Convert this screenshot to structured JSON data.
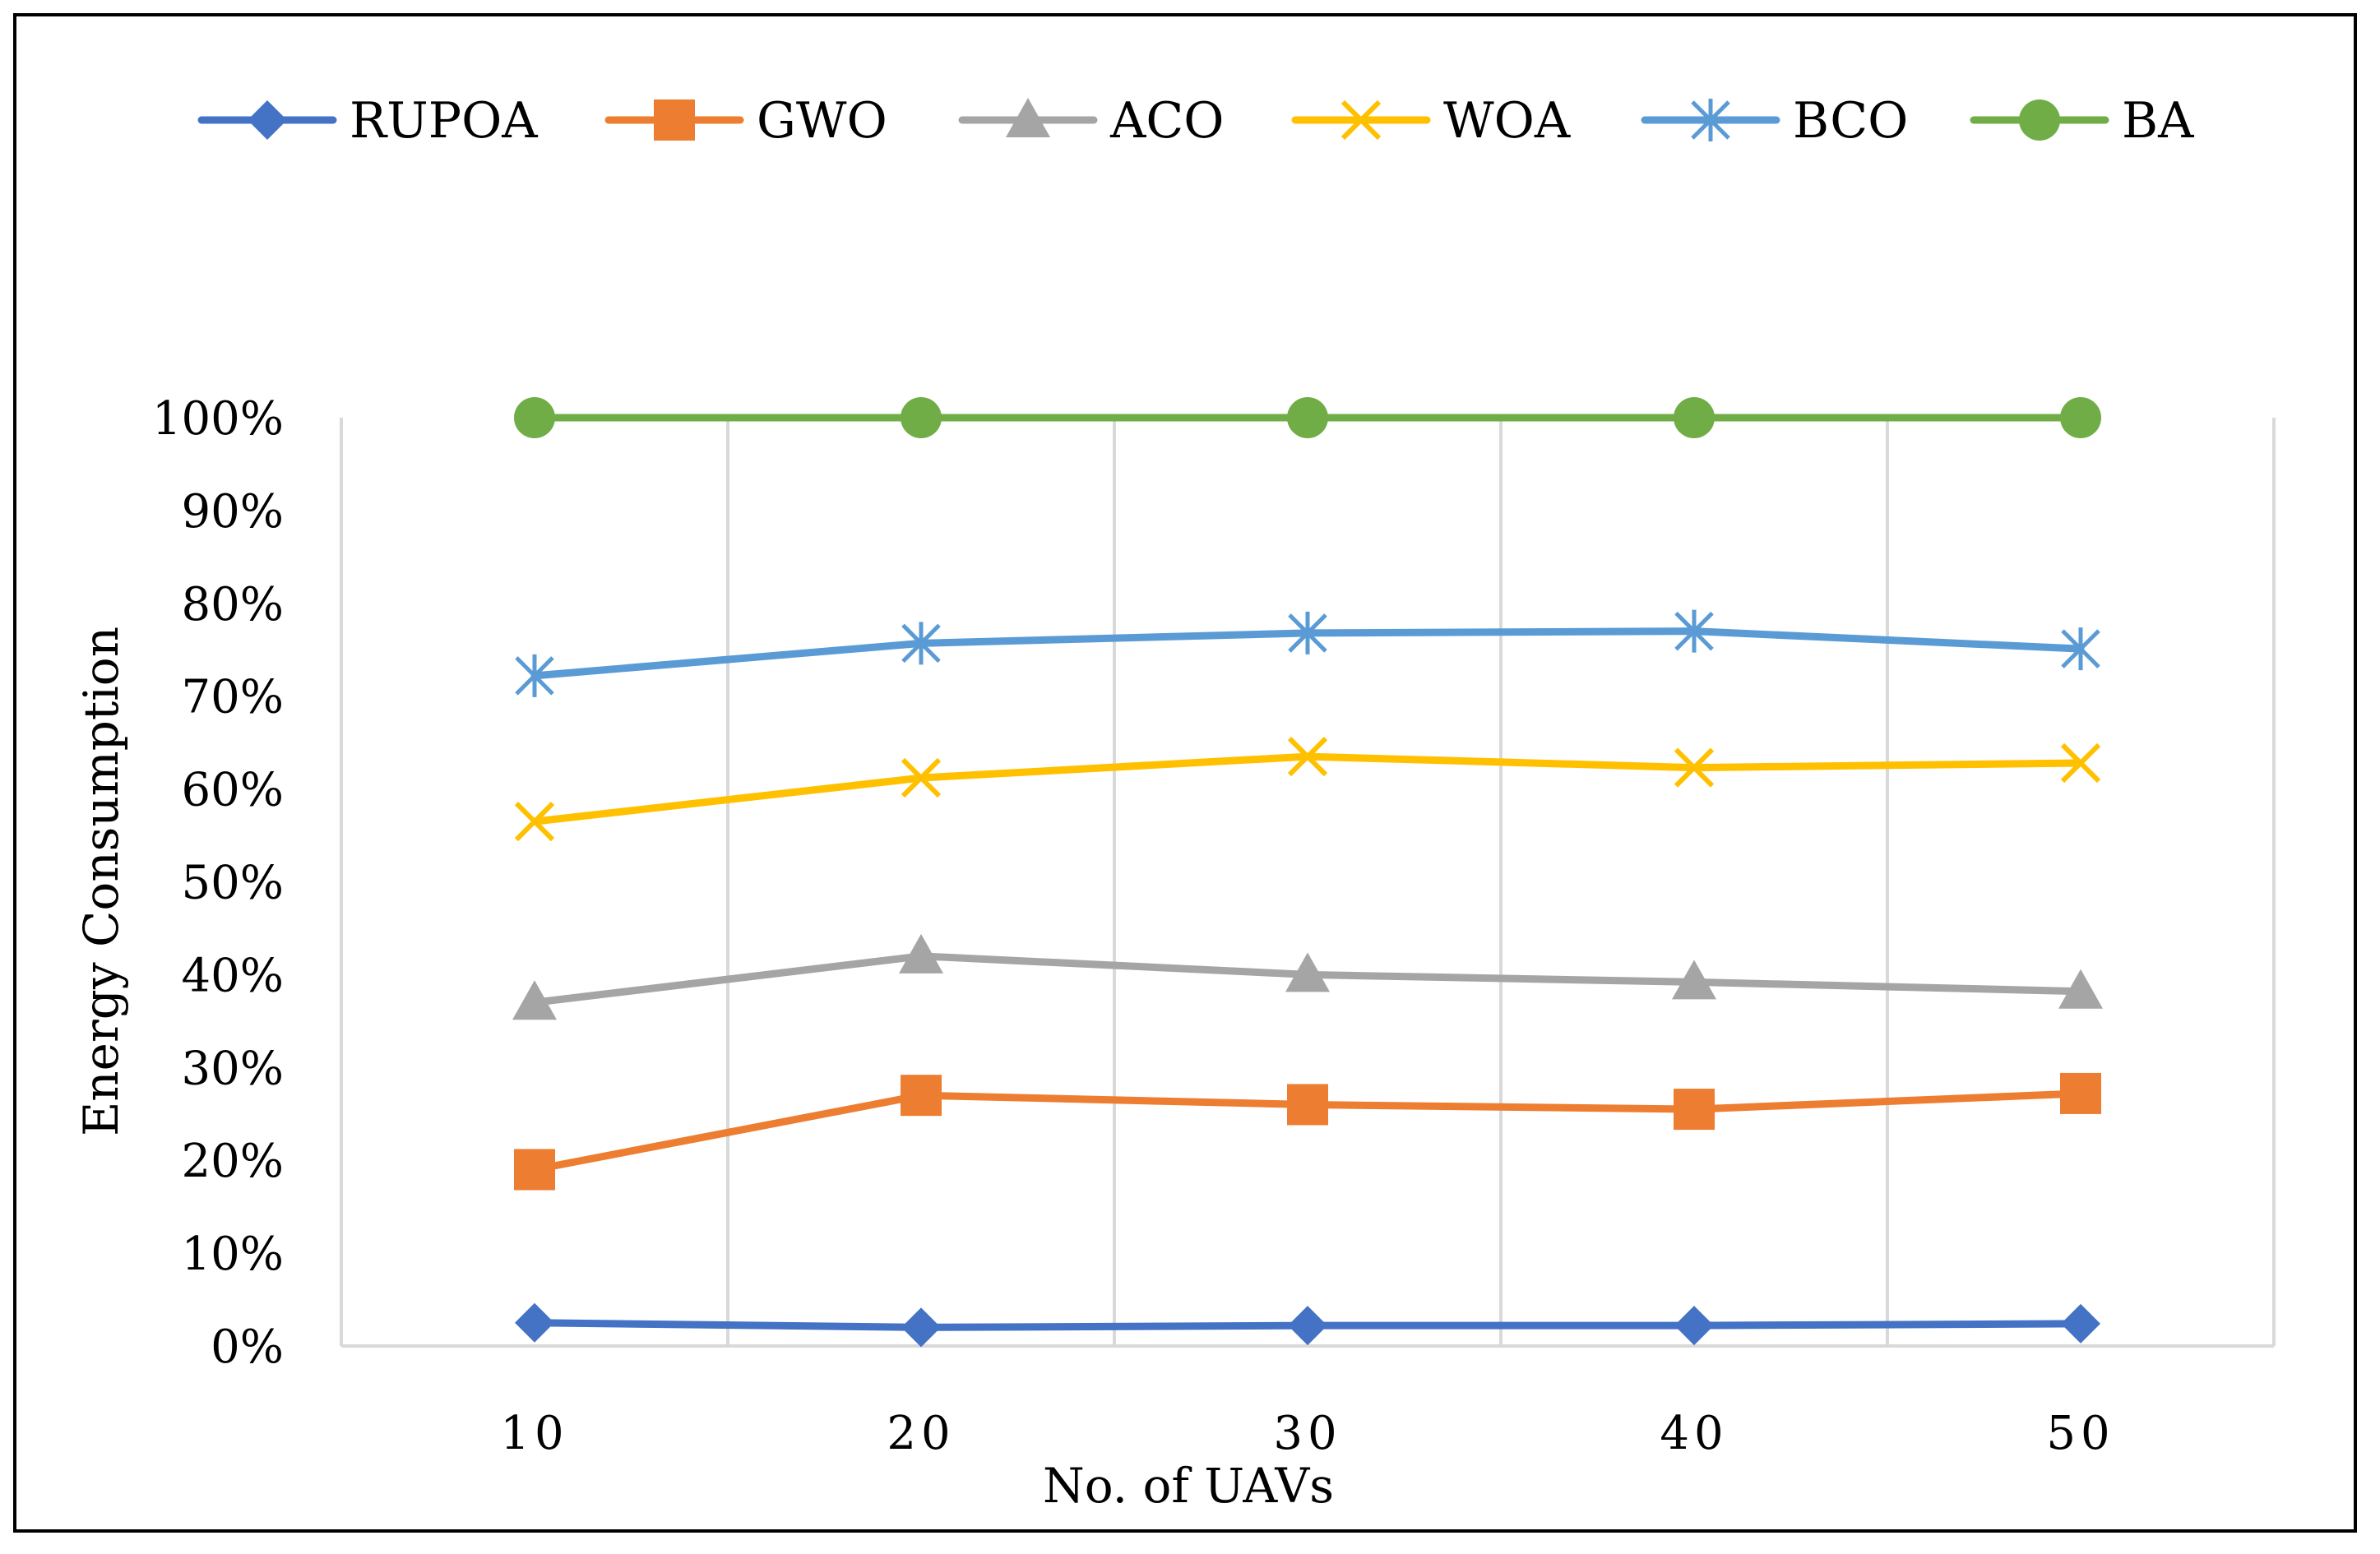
{
  "chart_data": {
    "type": "line",
    "title": "",
    "xlabel": "No. of UAVs",
    "ylabel": "Energy Consumption",
    "categories": [
      "10",
      "20",
      "30",
      "40",
      "50"
    ],
    "ylim": [
      0,
      100
    ],
    "yticks": [
      "0%",
      "10%",
      "20%",
      "30%",
      "40%",
      "50%",
      "60%",
      "70%",
      "80%",
      "90%",
      "100%"
    ],
    "grid": "vertical",
    "legend_position": "top",
    "series": [
      {
        "name": "RUPOA",
        "color": "#4472C4",
        "marker": "diamond",
        "values": [
          2.5,
          2.0,
          2.2,
          2.2,
          2.4
        ]
      },
      {
        "name": "GWO",
        "color": "#ED7D31",
        "marker": "square",
        "values": [
          19,
          27,
          26,
          25.5,
          27.2
        ]
      },
      {
        "name": "ACO",
        "color": "#A5A5A5",
        "marker": "triangle",
        "values": [
          37,
          42,
          40,
          39.2,
          38.2
        ]
      },
      {
        "name": "WOA",
        "color": "#FFC000",
        "marker": "x",
        "values": [
          56.5,
          61.2,
          63.5,
          62.3,
          62.8
        ]
      },
      {
        "name": "BCO",
        "color": "#5B9BD5",
        "marker": "star",
        "values": [
          72.2,
          75.7,
          76.8,
          77.0,
          75.1
        ]
      },
      {
        "name": "BA",
        "color": "#70AD47",
        "marker": "circle",
        "values": [
          100,
          100,
          100,
          100,
          100
        ]
      }
    ]
  }
}
